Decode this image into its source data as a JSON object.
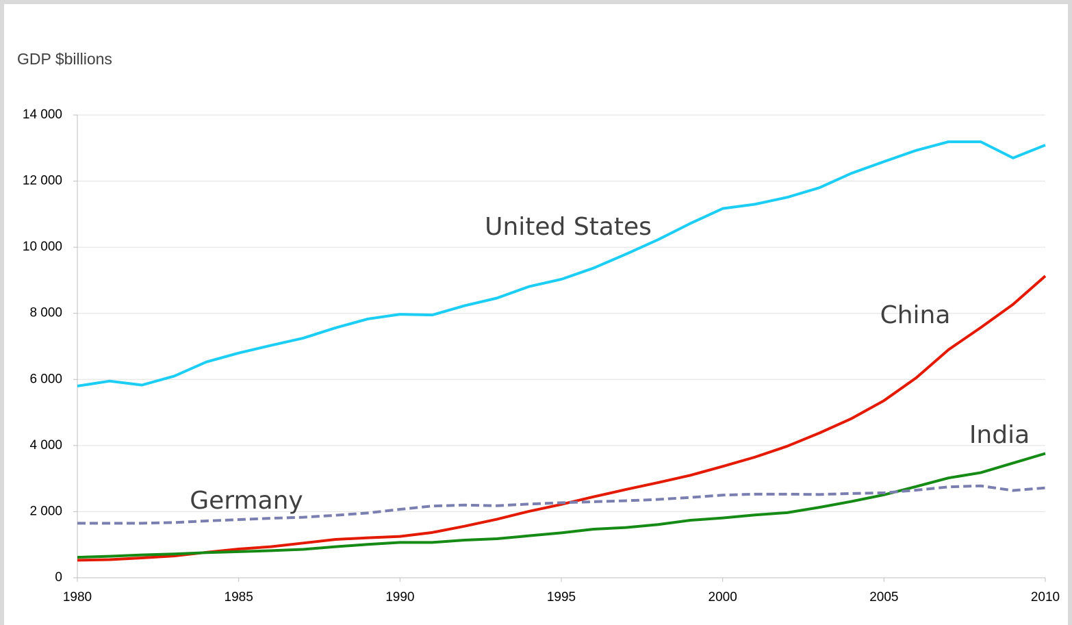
{
  "chart_data": {
    "type": "line",
    "y_label": "GDP $billions",
    "x": [
      1980,
      1981,
      1982,
      1983,
      1984,
      1985,
      1986,
      1987,
      1988,
      1989,
      1990,
      1991,
      1992,
      1993,
      1994,
      1995,
      1996,
      1997,
      1998,
      1999,
      2000,
      2001,
      2002,
      2003,
      2004,
      2005,
      2006,
      2007,
      2008,
      2009,
      2010
    ],
    "series": [
      {
        "name": "United States",
        "color": "#1ccdf4",
        "values": [
          5800,
          5950,
          5830,
          6100,
          6530,
          6800,
          7030,
          7250,
          7560,
          7830,
          7970,
          7950,
          8230,
          8460,
          8810,
          9030,
          9370,
          9790,
          10230,
          10720,
          11170,
          11300,
          11510,
          11800,
          12240,
          12590,
          12930,
          13190,
          13190,
          12700,
          13090
        ]
      },
      {
        "name": "China",
        "color": "#e31a00",
        "values": [
          530,
          550,
          600,
          660,
          770,
          870,
          940,
          1050,
          1160,
          1210,
          1250,
          1370,
          1560,
          1770,
          2010,
          2220,
          2450,
          2670,
          2880,
          3100,
          3370,
          3650,
          3980,
          4380,
          4820,
          5360,
          6050,
          6900,
          7570,
          8270,
          9130
        ]
      },
      {
        "name": "India",
        "color": "#158a15",
        "values": [
          620,
          650,
          690,
          720,
          760,
          790,
          820,
          860,
          940,
          1010,
          1070,
          1070,
          1140,
          1180,
          1270,
          1360,
          1470,
          1520,
          1610,
          1740,
          1810,
          1900,
          1970,
          2130,
          2310,
          2510,
          2760,
          3020,
          3180,
          3470,
          3760
        ]
      },
      {
        "name": "Germany",
        "color": "#7b7fb0",
        "line_style": "dashed",
        "values": [
          1650,
          1650,
          1650,
          1670,
          1720,
          1760,
          1800,
          1830,
          1890,
          1960,
          2070,
          2170,
          2200,
          2180,
          2230,
          2270,
          2300,
          2330,
          2370,
          2430,
          2500,
          2530,
          2530,
          2520,
          2550,
          2570,
          2650,
          2750,
          2780,
          2640,
          2720
        ]
      }
    ],
    "xlim": [
      1980,
      2010
    ],
    "xticks": [
      1980,
      1985,
      1990,
      1995,
      2000,
      2005,
      2010
    ],
    "ylim": [
      0,
      14000
    ],
    "yticks": [
      0,
      {
        "value": 2000,
        "label": "2 000"
      },
      {
        "value": 4000,
        "label": "4 000"
      },
      {
        "value": 6000,
        "label": "6 000"
      },
      {
        "value": 8000,
        "label": "8 000"
      },
      {
        "value": 10000,
        "label": "10 000"
      },
      {
        "value": 12000,
        "label": "12 000"
      },
      {
        "value": 14000,
        "label": "14 000"
      }
    ],
    "grid": true
  }
}
